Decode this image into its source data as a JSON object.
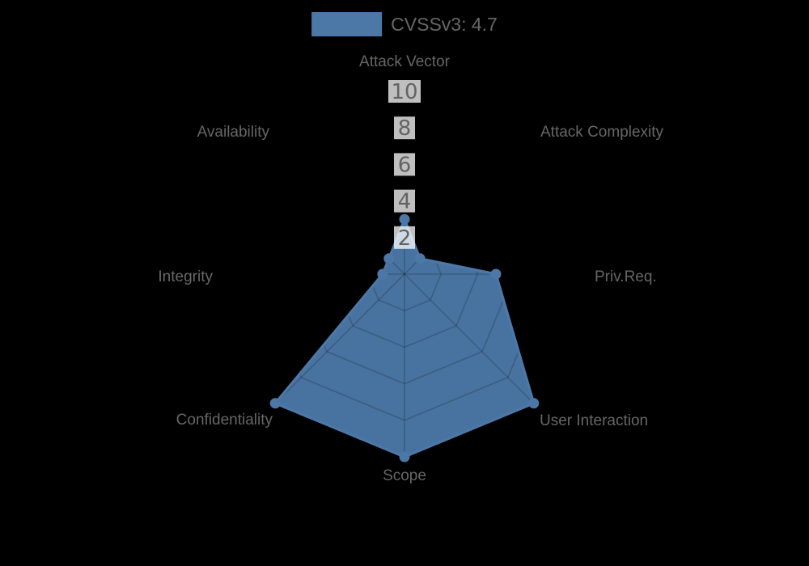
{
  "legend": {
    "label": "CVSSv3: 4.7",
    "swatch_color": "#4c78a8"
  },
  "chart_data": {
    "type": "radar",
    "title": "CVSSv3: 4.7",
    "axes": [
      "Attack Vector",
      "Attack Complexity",
      "Priv.Req.",
      "User Interaction",
      "Scope",
      "Confidentiality",
      "Integrity",
      "Availability"
    ],
    "series": [
      {
        "name": "CVSSv3: 4.7",
        "values": [
          3.0,
          1.2,
          5.0,
          10,
          10,
          10,
          1.2,
          1.2
        ]
      }
    ],
    "ticks": [
      2,
      4,
      6,
      8,
      10
    ],
    "rlim": [
      0,
      10
    ],
    "grid": true,
    "grid_shape": "polygon",
    "legend_position": "top",
    "colors": {
      "accent": "#4c78a8",
      "fill_opacity": 0.95,
      "grid_overlay": "rgba(0,0,0,0.18)",
      "axis_label": "#666666",
      "tick_label": "#636363",
      "tick_backdrop": "rgba(255,255,255,0.75)",
      "background": "#000000"
    }
  }
}
